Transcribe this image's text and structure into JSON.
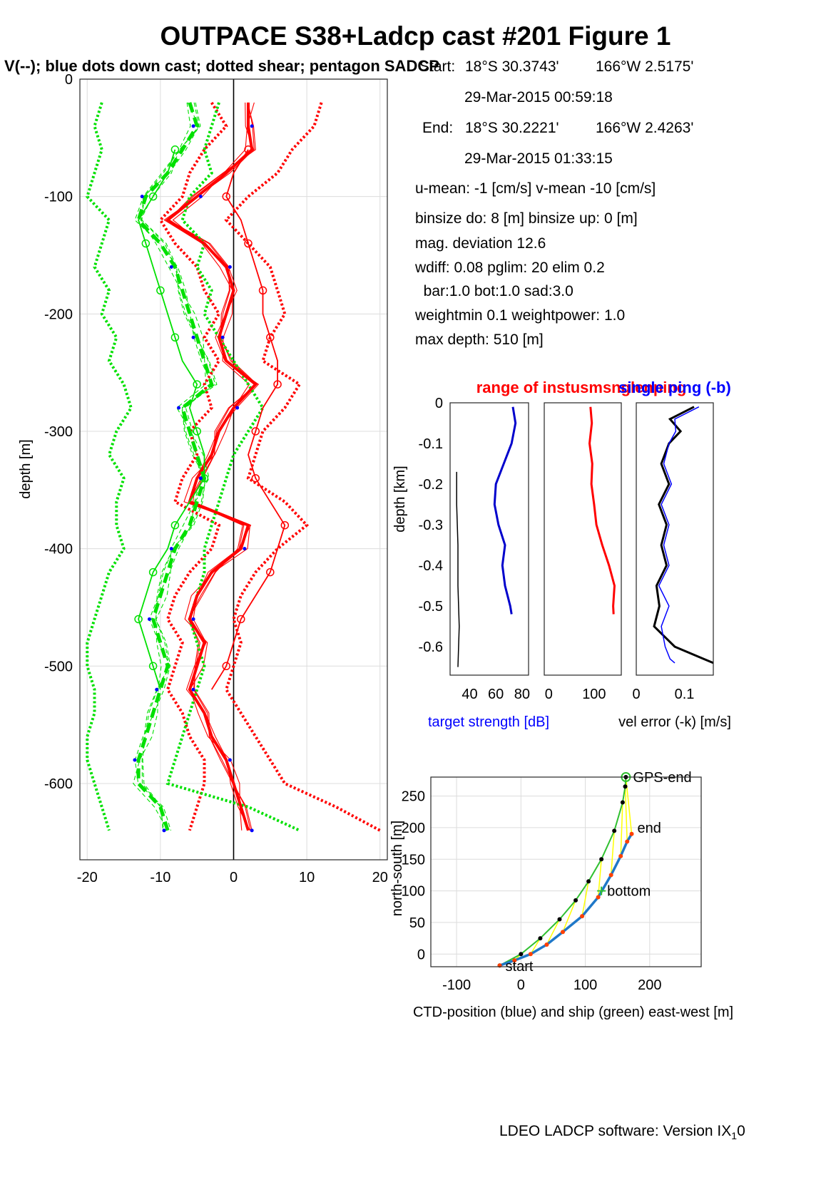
{
  "page": {
    "title": "OUTPACE S38+Ladcp cast #201  Figure 1",
    "subtitle": "V(--); blue dots down cast; dotted shear; pentagon SADCP",
    "footer_main": "LDEO LADCP software: Version IX",
    "footer_sub": "1",
    "footer_tail": "0"
  },
  "info": {
    "start_label": "Start:",
    "start_lat": "18°S 30.3743'",
    "start_lon": "166°W  2.5175'",
    "start_time": "29-Mar-2015 00:59:18",
    "end_label": "End:",
    "end_lat": "18°S 30.2221'",
    "end_lon": "166°W  2.4263'",
    "end_time": "29-Mar-2015 01:33:15",
    "umean": "u-mean:  -1 [cm/s]    v-mean -10 [cm/s]",
    "binsize": "binsize do: 8 [m]  binsize up:  0 [m]",
    "magdev": "mag. deviation 12.6",
    "wdiff": "wdiff: 0.08  pglim: 20  elim 0.2",
    "bar": "  bar:1.0 bot:1.0 sad:3.0",
    "weight": "weightmin 0.1  weightpower: 1.0",
    "maxdepth": "max depth: 510 [m]"
  },
  "colors": {
    "u": "#ff0000",
    "v": "#00e000",
    "dots": "#0000ff",
    "target": "#0000cc",
    "noise": "#000000",
    "range": "#ff0000",
    "err_k": "#000000",
    "err_b": "#0000ff",
    "ctd": "#1f78c8",
    "ship": "#30c030",
    "link": "#ffff00",
    "label_red": "#ff0000",
    "label_blue": "#0000ff"
  },
  "chart_data": [
    {
      "type": "line",
      "name": "velocity profile",
      "xlabel": "",
      "ylabel": "depth [m]",
      "xlim": [
        -21,
        21
      ],
      "ylim": [
        -665,
        0
      ],
      "xticks": [
        -20,
        -10,
        0,
        10,
        20
      ],
      "yticks": [
        0,
        -100,
        -200,
        -300,
        -400,
        -500,
        -600
      ],
      "grid": true,
      "depth": [
        -20,
        -40,
        -60,
        -80,
        -100,
        -120,
        -140,
        -160,
        -180,
        -200,
        -220,
        -240,
        -260,
        -280,
        -300,
        -320,
        -340,
        -360,
        -380,
        -400,
        -420,
        -440,
        -460,
        -480,
        -500,
        -520,
        -540,
        -560,
        -580,
        -600,
        -620,
        -640
      ],
      "series": [
        {
          "name": "u",
          "values": [
            2,
            2,
            2.5,
            -1,
            -5,
            -9,
            -4,
            -1,
            0,
            -1,
            -2,
            -1,
            3,
            0,
            -2,
            -3,
            -5,
            -6,
            2,
            1,
            -3,
            -5,
            -6,
            -4,
            -5,
            -6,
            -4,
            -3,
            -1,
            0,
            1,
            2
          ]
        },
        {
          "name": "v",
          "values": [
            -6,
            -5,
            -7,
            -9,
            -12,
            -13,
            -10,
            -8,
            -7,
            -6,
            -5,
            -4,
            -3,
            -7,
            -6,
            -5,
            -4,
            -5,
            -6,
            -8,
            -9,
            -10,
            -11,
            -10,
            -9,
            -10,
            -11,
            -12,
            -13,
            -13,
            -10,
            -9
          ]
        },
        {
          "name": "u_shear_low",
          "values": [
            -3,
            -1,
            -4,
            -6,
            -7,
            -10,
            -8,
            -5,
            -4,
            -2,
            -4,
            -2,
            -4,
            -3,
            -6,
            -5,
            -7,
            -8,
            -2,
            -3,
            -6,
            -8,
            -9,
            -7,
            -8,
            -9,
            -7,
            -6,
            -4,
            -4,
            -5,
            -6
          ]
        },
        {
          "name": "u_shear_high",
          "values": [
            12,
            11,
            8,
            6,
            2,
            -1,
            2,
            5,
            6,
            7,
            5,
            4,
            9,
            7,
            4,
            3,
            2,
            7,
            10,
            6,
            3,
            1,
            0,
            1,
            0,
            -1,
            1,
            3,
            5,
            7,
            14,
            20
          ]
        },
        {
          "name": "v_shear_low",
          "values": [
            -18,
            -19,
            -18,
            -19,
            -20,
            -17,
            -18,
            -19,
            -17,
            -18,
            -16,
            -17,
            -15,
            -14,
            -16,
            -17,
            -15,
            -16,
            -16,
            -15,
            -17,
            -18,
            -19,
            -20,
            -20,
            -19,
            -19,
            -20,
            -20,
            -19,
            -18,
            -17
          ]
        },
        {
          "name": "v_shear_high",
          "values": [
            -2,
            -3,
            -4,
            -3,
            -6,
            -7,
            -4,
            -5,
            -3,
            -4,
            -2,
            0,
            2,
            4,
            2,
            0,
            -1,
            -2,
            -3,
            -4,
            -4,
            -5,
            -6,
            -5,
            -4,
            -5,
            -6,
            -7,
            -8,
            -9,
            2,
            9
          ]
        },
        {
          "name": "u_sadcp",
          "values": [
            null,
            null,
            2,
            0,
            -1,
            1,
            2,
            3,
            4,
            4,
            5,
            6,
            6,
            4,
            3,
            2,
            3,
            5,
            7,
            6,
            5,
            3,
            1,
            0,
            -1,
            -3,
            null,
            null,
            null,
            null,
            null,
            null
          ]
        },
        {
          "name": "v_sadcp",
          "values": [
            null,
            null,
            -8,
            -9,
            -11,
            -13,
            -12,
            -11,
            -10,
            -9,
            -8,
            -7,
            -5,
            -6,
            -5,
            -4,
            -4,
            -6,
            -8,
            -9,
            -11,
            -12,
            -13,
            -12,
            -11,
            -10,
            null,
            null,
            null,
            null,
            null,
            null
          ]
        }
      ]
    },
    {
      "type": "line",
      "name": "target strength",
      "xlabel": "target strength [dB]",
      "ylabel": "depth [km]",
      "xlim": [
        25,
        85
      ],
      "ylim": [
        -0.67,
        0
      ],
      "xticks": [
        40,
        60,
        80
      ],
      "yticks": [
        0,
        -0.1,
        -0.2,
        -0.3,
        -0.4,
        -0.5,
        -0.6
      ],
      "depth": [
        -0.01,
        -0.05,
        -0.1,
        -0.15,
        -0.2,
        -0.25,
        -0.3,
        -0.35,
        -0.4,
        -0.45,
        -0.5,
        -0.52
      ],
      "series": [
        {
          "name": "target",
          "values": [
            73,
            75,
            72,
            66,
            60,
            59,
            62,
            67,
            65,
            67,
            71,
            72
          ]
        },
        {
          "name": "noise",
          "depth": [
            -0.17,
            -0.25,
            -0.35,
            -0.45,
            -0.55,
            -0.65
          ],
          "values": [
            30,
            30,
            31,
            31,
            32,
            31
          ]
        }
      ]
    },
    {
      "type": "line",
      "name": "range of instrument",
      "xlabel": "",
      "title": "range of instusmsnglenping",
      "xlim": [
        -10,
        160
      ],
      "ylim": [
        -0.67,
        0
      ],
      "xticks": [
        0,
        100
      ],
      "depth": [
        -0.01,
        -0.05,
        -0.1,
        -0.15,
        -0.2,
        -0.25,
        -0.3,
        -0.35,
        -0.4,
        -0.45,
        -0.5,
        -0.52
      ],
      "series": [
        {
          "name": "range",
          "values": [
            92,
            95,
            90,
            96,
            94,
            100,
            105,
            118,
            133,
            145,
            142,
            143
          ]
        }
      ]
    },
    {
      "type": "line",
      "name": "velocity error",
      "xlabel": "vel error (-k) [m/s]",
      "title": "single ping (-b)",
      "xlim": [
        0,
        0.16
      ],
      "ylim": [
        -0.67,
        0
      ],
      "xticks": [
        0,
        0.1
      ],
      "depth": [
        -0.01,
        -0.04,
        -0.07,
        -0.1,
        -0.15,
        -0.2,
        -0.25,
        -0.3,
        -0.35,
        -0.4,
        -0.45,
        -0.5,
        -0.55,
        -0.6,
        -0.63,
        -0.64
      ],
      "series": [
        {
          "name": "k",
          "values": [
            0.12,
            0.07,
            0.1,
            0.06,
            0.06,
            0.06,
            0.055,
            0.055,
            0.06,
            0.055,
            0.05,
            0.04,
            0.045,
            0.08,
            0.14,
            0.16
          ]
        },
        {
          "name": "b",
          "values": [
            0.13,
            0.08,
            0.09,
            0.06,
            0.065,
            0.065,
            0.06,
            0.06,
            0.065,
            0.06,
            0.055,
            0.06,
            0.06,
            0.06,
            0.07,
            0.08
          ]
        }
      ]
    },
    {
      "type": "line",
      "name": "position",
      "xlabel": "CTD-position (blue) and ship (green) east-west [m]",
      "ylabel": "north-south [m]",
      "xlim": [
        -140,
        280
      ],
      "ylim": [
        -20,
        280
      ],
      "xticks": [
        -100,
        0,
        100,
        200
      ],
      "yticks": [
        0,
        50,
        100,
        150,
        200,
        250
      ],
      "grid": true,
      "labels": {
        "gps_end": "GPS-end",
        "end": "end",
        "bottom": "bottom",
        "start": "start"
      },
      "series": [
        {
          "name": "ctd",
          "x": [
            -33,
            -10,
            15,
            40,
            65,
            95,
            120,
            140,
            155,
            165,
            172
          ],
          "y": [
            -18,
            -10,
            0,
            15,
            35,
            60,
            90,
            125,
            155,
            178,
            190
          ]
        },
        {
          "name": "ship",
          "x": [
            -33,
            0,
            30,
            60,
            85,
            105,
            125,
            145,
            158,
            162,
            163
          ],
          "y": [
            -18,
            0,
            25,
            55,
            85,
            115,
            150,
            195,
            240,
            265,
            280
          ]
        }
      ]
    }
  ]
}
